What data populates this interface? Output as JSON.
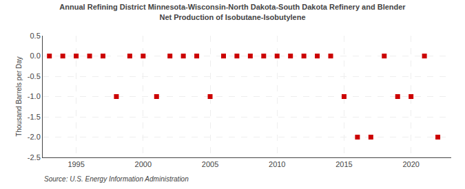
{
  "chart_data": {
    "type": "scatter",
    "title": "Annual Refining District Minnesota-Wisconsin-North Dakota-South Dakota Refinery and Blender",
    "subtitle": "Net Production of Isobutane-Isobutylene",
    "ylabel": "Thousand Barrels per Day",
    "annotations": [
      "Source: U.S. Energy Information Administration"
    ],
    "x": [
      1993,
      1994,
      1995,
      1996,
      1997,
      1998,
      1999,
      2000,
      2001,
      2002,
      2003,
      2004,
      2005,
      2006,
      2007,
      2008,
      2009,
      2010,
      2011,
      2012,
      2013,
      2014,
      2015,
      2016,
      2017,
      2018,
      2019,
      2020,
      2021,
      2022
    ],
    "values": [
      0,
      0,
      0,
      0,
      0,
      -1,
      0,
      0,
      -1,
      0,
      0,
      0,
      -1,
      0,
      0,
      0,
      0,
      0,
      0,
      0,
      0,
      0,
      -1,
      -2,
      -2,
      0,
      -1,
      -1,
      0,
      -2
    ],
    "color": "#cc0000",
    "marker": "square",
    "xlim": [
      1992.5,
      2023
    ],
    "xticks": [
      1995,
      2000,
      2005,
      2010,
      2015,
      2020
    ],
    "ylim": [
      -2.5,
      0.5
    ],
    "yticks": [
      0.5,
      {
        "value": 0,
        "label": "0.0"
      },
      -0.5,
      {
        "value": -1,
        "label": "-1.0"
      },
      -1.5,
      {
        "value": -2,
        "label": "-2.0"
      },
      -2.5
    ],
    "grid": true
  }
}
